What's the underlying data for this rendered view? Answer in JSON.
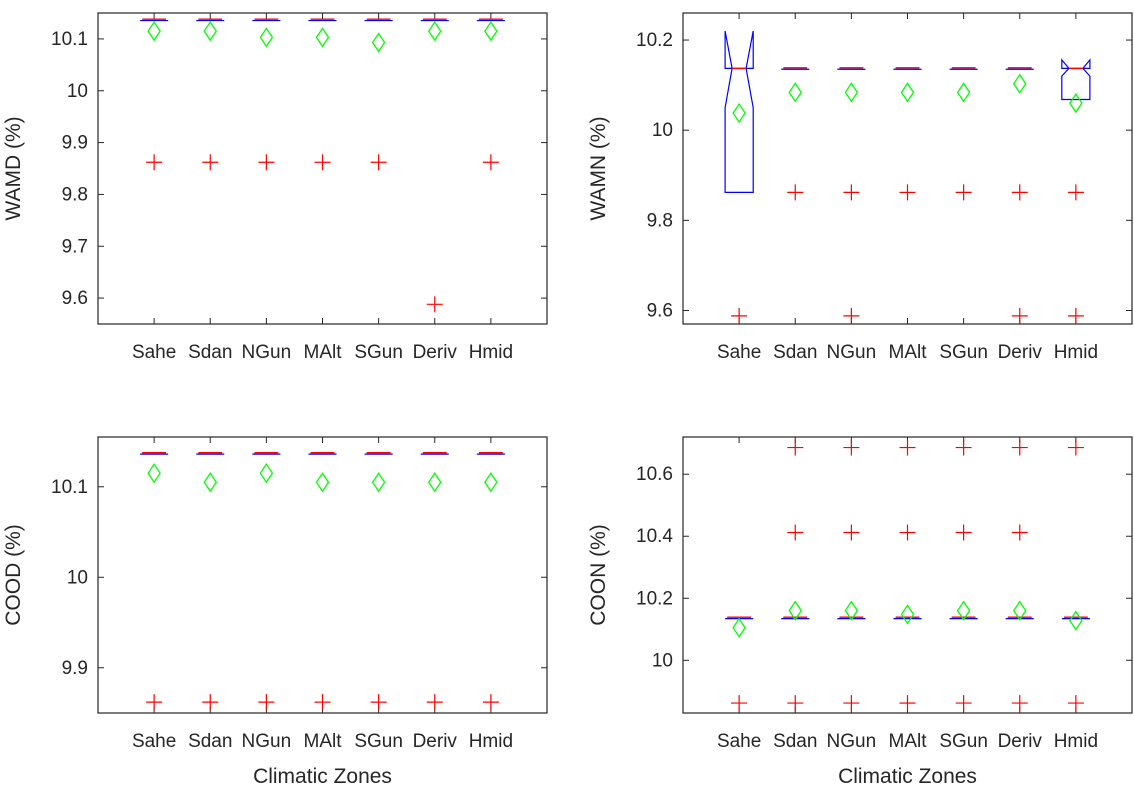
{
  "figure": {
    "xlabel": "Climatic Zones",
    "categories": [
      "Sahe",
      "Sdan",
      "NGun",
      "MAlt",
      "SGun",
      "Deriv",
      "Hmid"
    ]
  },
  "colors": {
    "box": "#0000ff",
    "median": "#ff0000",
    "outlier": "#ff0000",
    "mean": "#00ff00",
    "axis": "#262626"
  },
  "chart_data": [
    {
      "type": "box",
      "ylabel": "WAMD (%)",
      "xlabel": "",
      "categories": [
        "Sahe",
        "Sdan",
        "NGun",
        "MAlt",
        "SGun",
        "Deriv",
        "Hmid"
      ],
      "ylim": [
        9.55,
        10.15
      ],
      "yticks": [
        9.6,
        9.7,
        9.8,
        9.9,
        10,
        10.1
      ],
      "yticklabels": [
        "9.6",
        "9.7",
        "9.8",
        "9.9",
        "10",
        "10.1"
      ],
      "boxes": [
        {
          "median": 10.137,
          "q1": 10.137,
          "q3": 10.137,
          "mean": 10.115,
          "outliers": [
            9.862
          ]
        },
        {
          "median": 10.137,
          "q1": 10.137,
          "q3": 10.137,
          "mean": 10.115,
          "outliers": [
            9.862
          ]
        },
        {
          "median": 10.137,
          "q1": 10.137,
          "q3": 10.137,
          "mean": 10.103,
          "outliers": [
            9.862
          ]
        },
        {
          "median": 10.137,
          "q1": 10.137,
          "q3": 10.137,
          "mean": 10.103,
          "outliers": [
            9.862
          ]
        },
        {
          "median": 10.137,
          "q1": 10.137,
          "q3": 10.137,
          "mean": 10.093,
          "outliers": [
            9.862
          ]
        },
        {
          "median": 10.137,
          "q1": 10.137,
          "q3": 10.137,
          "mean": 10.115,
          "outliers": [
            9.588
          ]
        },
        {
          "median": 10.137,
          "q1": 10.137,
          "q3": 10.137,
          "mean": 10.115,
          "outliers": [
            9.862
          ]
        }
      ]
    },
    {
      "type": "box",
      "ylabel": "WAMN (%)",
      "xlabel": "",
      "categories": [
        "Sahe",
        "Sdan",
        "NGun",
        "MAlt",
        "SGun",
        "Deriv",
        "Hmid"
      ],
      "ylim": [
        9.57,
        10.26
      ],
      "yticks": [
        9.6,
        9.8,
        10,
        10.2
      ],
      "yticklabels": [
        "9.6",
        "9.8",
        "10",
        "10.2"
      ],
      "boxes": [
        {
          "median": 10.137,
          "q1": 9.862,
          "q3": 10.137,
          "notch_low": 10.05,
          "notch_high": 10.22,
          "mean": 10.038,
          "outliers": [
            9.588
          ]
        },
        {
          "median": 10.137,
          "q1": 10.137,
          "q3": 10.137,
          "mean": 10.084,
          "outliers": [
            9.862
          ]
        },
        {
          "median": 10.137,
          "q1": 10.137,
          "q3": 10.137,
          "mean": 10.084,
          "outliers": [
            9.862,
            9.588
          ]
        },
        {
          "median": 10.137,
          "q1": 10.137,
          "q3": 10.137,
          "mean": 10.084,
          "outliers": [
            9.862
          ]
        },
        {
          "median": 10.137,
          "q1": 10.137,
          "q3": 10.137,
          "mean": 10.084,
          "outliers": [
            9.862
          ]
        },
        {
          "median": 10.137,
          "q1": 10.137,
          "q3": 10.137,
          "mean": 10.103,
          "outliers": [
            9.862,
            9.588
          ]
        },
        {
          "median": 10.137,
          "q1": 10.068,
          "q3": 10.137,
          "notch_low": 10.12,
          "notch_high": 10.156,
          "mean": 10.06,
          "outliers": [
            9.862,
            9.588
          ]
        }
      ]
    },
    {
      "type": "box",
      "ylabel": "COOD (%)",
      "xlabel": "Climatic Zones",
      "categories": [
        "Sahe",
        "Sdan",
        "NGun",
        "MAlt",
        "SGun",
        "Deriv",
        "Hmid"
      ],
      "ylim": [
        9.85,
        10.155
      ],
      "yticks": [
        9.9,
        10,
        10.1
      ],
      "yticklabels": [
        "9.9",
        "10",
        "10.1"
      ],
      "boxes": [
        {
          "median": 10.137,
          "q1": 10.137,
          "q3": 10.137,
          "mean": 10.115,
          "outliers": [
            9.862
          ]
        },
        {
          "median": 10.137,
          "q1": 10.137,
          "q3": 10.137,
          "mean": 10.105,
          "outliers": [
            9.862
          ]
        },
        {
          "median": 10.137,
          "q1": 10.137,
          "q3": 10.137,
          "mean": 10.115,
          "outliers": [
            9.862
          ]
        },
        {
          "median": 10.137,
          "q1": 10.137,
          "q3": 10.137,
          "mean": 10.105,
          "outliers": [
            9.862
          ]
        },
        {
          "median": 10.137,
          "q1": 10.137,
          "q3": 10.137,
          "mean": 10.105,
          "outliers": [
            9.862
          ]
        },
        {
          "median": 10.137,
          "q1": 10.137,
          "q3": 10.137,
          "mean": 10.105,
          "outliers": [
            9.862
          ]
        },
        {
          "median": 10.137,
          "q1": 10.137,
          "q3": 10.137,
          "mean": 10.105,
          "outliers": [
            9.862
          ]
        }
      ]
    },
    {
      "type": "box",
      "ylabel": "COON (%)",
      "xlabel": "Climatic Zones",
      "categories": [
        "Sahe",
        "Sdan",
        "NGun",
        "MAlt",
        "SGun",
        "Deriv",
        "Hmid"
      ],
      "ylim": [
        9.83,
        10.72
      ],
      "yticks": [
        10,
        10.2,
        10.4,
        10.6
      ],
      "yticklabels": [
        "10",
        "10.2",
        "10.4",
        "10.6"
      ],
      "boxes": [
        {
          "median": 10.137,
          "q1": 10.137,
          "q3": 10.137,
          "mean": 10.105,
          "outliers": [
            9.862
          ]
        },
        {
          "median": 10.137,
          "q1": 10.137,
          "q3": 10.137,
          "mean": 10.16,
          "outliers": [
            9.862,
            10.412,
            10.686
          ]
        },
        {
          "median": 10.137,
          "q1": 10.137,
          "q3": 10.137,
          "mean": 10.16,
          "outliers": [
            9.862,
            10.412,
            10.686
          ]
        },
        {
          "median": 10.137,
          "q1": 10.137,
          "q3": 10.137,
          "mean": 10.148,
          "outliers": [
            9.862,
            10.412,
            10.686
          ]
        },
        {
          "median": 10.137,
          "q1": 10.137,
          "q3": 10.137,
          "mean": 10.16,
          "outliers": [
            9.862,
            10.412,
            10.686
          ]
        },
        {
          "median": 10.137,
          "q1": 10.137,
          "q3": 10.137,
          "mean": 10.16,
          "outliers": [
            9.862,
            10.412,
            10.686
          ]
        },
        {
          "median": 10.137,
          "q1": 10.137,
          "q3": 10.137,
          "mean": 10.128,
          "outliers": [
            9.862,
            10.686
          ]
        }
      ]
    }
  ]
}
